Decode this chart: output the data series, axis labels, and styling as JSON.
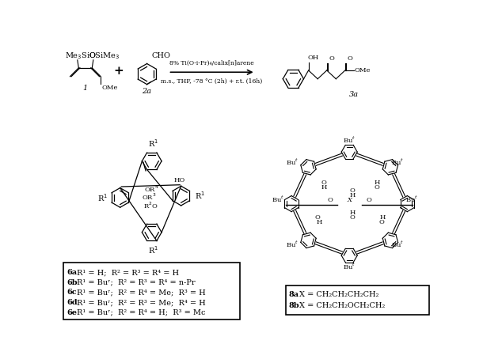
{
  "background_color": "#ffffff",
  "reaction_arrow_label1": "8% Ti(O-i-Pr)₄/calix[n]arene",
  "reaction_arrow_label2": "m.s., THF, -78 °C (2h) + r.t. (16h)",
  "compound1_label": "1",
  "compound2_label": "2a",
  "compound3_label": "3a",
  "box1_lines": [
    [
      "6a",
      "R¹ = H;  R² = R³ = R⁴ = H"
    ],
    [
      "6b",
      "R¹ = Buʳ;  R² = R³ = R⁴ = n-Pr"
    ],
    [
      "6c",
      "R¹ = Buʳ;  R² = R⁴ = Me;  R³ = H"
    ],
    [
      "6d",
      "R¹ = Buʳ;  R² = R³ = Me;  R⁴ = H"
    ],
    [
      "6e",
      "R¹ = Buʳ;  R² = R⁴ = H;  R³ = Mc"
    ]
  ],
  "box2_lines": [
    [
      "8a",
      "X = CH₂CH₂CH₂CH₂"
    ],
    [
      "8b",
      "X = CH₂CH₂OCH₂CH₂"
    ]
  ]
}
